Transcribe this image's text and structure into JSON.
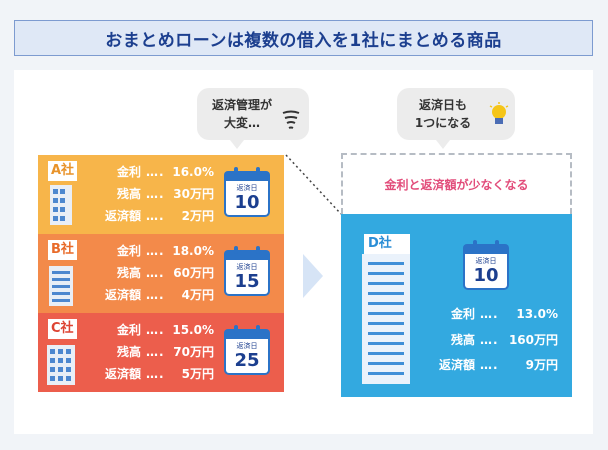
{
  "title": "おまとめローンは複数の借入を1社にまとめる商品",
  "bubble_left": {
    "line1": "返済管理が",
    "line2": "大変…"
  },
  "bubble_right": {
    "line1": "返済日も",
    "line2": "1つになる"
  },
  "caption_right": "金利と返済額が少なくなる",
  "calendar_label": "返済日",
  "labels": {
    "rate": "金利",
    "balance": "残高",
    "payment": "返済額",
    "dots": "…."
  },
  "companies": [
    {
      "name": "A社",
      "rate": "16.0%",
      "balance": "30万円",
      "payment": "2万円",
      "day": "10"
    },
    {
      "name": "B社",
      "rate": "18.0%",
      "balance": "60万円",
      "payment": "4万円",
      "day": "15"
    },
    {
      "name": "C社",
      "rate": "15.0%",
      "balance": "70万円",
      "payment": "5万円",
      "day": "25"
    }
  ],
  "consolidated": {
    "name": "D社",
    "rate": "13.0%",
    "balance": "160万円",
    "payment": "9万円",
    "day": "10"
  },
  "colors": {
    "a": "#f7b54a",
    "b": "#f38a4a",
    "c": "#ec5e4c",
    "d": "#33a9e0",
    "title": "#1c3f8f"
  }
}
